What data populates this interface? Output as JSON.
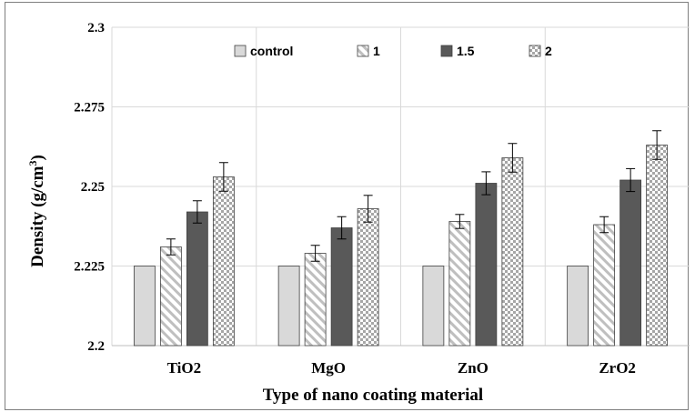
{
  "chart_data": {
    "type": "bar",
    "title": "",
    "xlabel": "Type of nano coating material",
    "ylabel": "Density (g/cm",
    "ylabel_sup": "3",
    "ylabel_close": ")",
    "categories": [
      "TiO2",
      "MgO",
      "ZnO",
      "ZrO2"
    ],
    "ylim": [
      2.2,
      2.3
    ],
    "yticks": [
      "2.2",
      "2.225",
      "2.25",
      "2.275",
      "2.3"
    ],
    "grid": true,
    "legend_position": "top",
    "series": [
      {
        "name": "control",
        "values": [
          2.225,
          2.225,
          2.225,
          2.225
        ],
        "errors": [
          0,
          0,
          0,
          0
        ],
        "color": "#d9d9d9",
        "pattern": "solid"
      },
      {
        "name": "1",
        "values": [
          2.231,
          2.229,
          2.239,
          2.238
        ],
        "errors": [
          0.0025,
          0.0025,
          0.0022,
          0.0025
        ],
        "color": "#ffffff",
        "pattern": "diagonal"
      },
      {
        "name": "1.5",
        "values": [
          2.242,
          2.237,
          2.251,
          2.252
        ],
        "errors": [
          0.0035,
          0.0035,
          0.0036,
          0.0036
        ],
        "color": "#595959",
        "pattern": "solid"
      },
      {
        "name": "2",
        "values": [
          2.253,
          2.243,
          2.259,
          2.263
        ],
        "errors": [
          0.0045,
          0.0042,
          0.0045,
          0.0045
        ],
        "color": "#ffffff",
        "pattern": "checker"
      }
    ]
  }
}
